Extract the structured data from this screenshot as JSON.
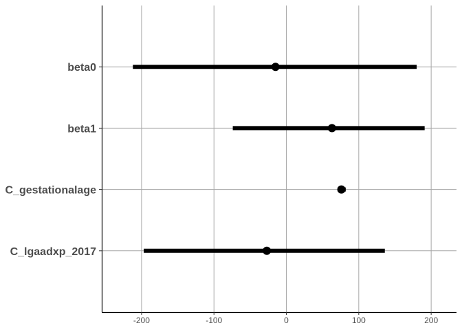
{
  "chart_data": {
    "type": "interval",
    "title": "",
    "xlabel": "",
    "ylabel": "",
    "xlim": [
      -255,
      235
    ],
    "grid": true,
    "x_ticks": [
      -200,
      -100,
      0,
      100,
      200
    ],
    "x_tick_labels": [
      "-200",
      "-100",
      "0",
      "100",
      "200"
    ],
    "categories": [
      "beta0",
      "beta1",
      "C_gestationalage",
      "C_lgaadxp_2017"
    ],
    "points": [
      {
        "label": "beta0",
        "estimate": -15,
        "lower": -212,
        "upper": 180
      },
      {
        "label": "beta1",
        "estimate": 63,
        "lower": -74,
        "upper": 191
      },
      {
        "label": "C_gestationalage",
        "estimate": 76,
        "lower": 71,
        "upper": 82
      },
      {
        "label": "C_lgaadxp_2017",
        "estimate": -27,
        "lower": -197,
        "upper": 136
      }
    ],
    "mark_color": "#000000"
  }
}
